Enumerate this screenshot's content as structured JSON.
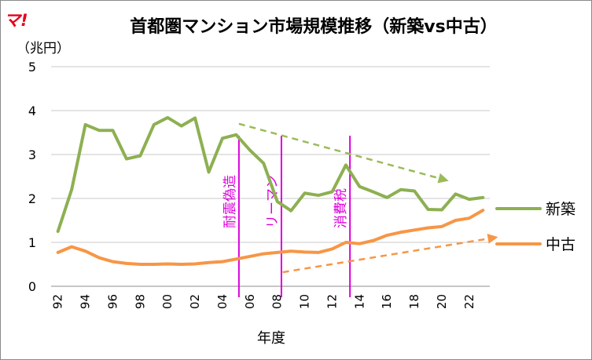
{
  "logo": {
    "text": "マ!",
    "color": "#e8001c"
  },
  "chart_data": {
    "type": "line",
    "title": "首都圏マンション市場規模推移（新築vs中古）",
    "ylabel": "（兆円）",
    "xlabel": "年度",
    "ylim": [
      0,
      5
    ],
    "yticks": [
      0,
      1,
      2,
      3,
      4,
      5
    ],
    "grid": true,
    "legend_position": "right",
    "x": [
      1992,
      1993,
      1994,
      1995,
      1996,
      1997,
      1998,
      1999,
      2000,
      2001,
      2002,
      2003,
      2004,
      2005,
      2006,
      2007,
      2008,
      2009,
      2010,
      2011,
      2012,
      2013,
      2014,
      2015,
      2016,
      2017,
      2018,
      2019,
      2020,
      2021,
      2022,
      2023
    ],
    "xtick_labels": [
      "92",
      "94",
      "96",
      "98",
      "00",
      "02",
      "04",
      "06",
      "08",
      "10",
      "12",
      "14",
      "16",
      "18",
      "20",
      "22"
    ],
    "xtick_years": [
      1992,
      1994,
      1996,
      1998,
      2000,
      2002,
      2004,
      2006,
      2008,
      2010,
      2012,
      2014,
      2016,
      2018,
      2020,
      2022
    ],
    "series": [
      {
        "name": "新築",
        "color": "#8db051",
        "values": [
          1.25,
          2.2,
          3.68,
          3.55,
          3.55,
          2.9,
          2.97,
          3.68,
          3.84,
          3.65,
          3.83,
          2.6,
          3.37,
          3.45,
          3.1,
          2.8,
          1.93,
          1.72,
          2.12,
          2.07,
          2.15,
          2.76,
          2.27,
          2.15,
          2.02,
          2.2,
          2.17,
          1.75,
          1.74,
          2.1,
          1.98,
          2.02
        ]
      },
      {
        "name": "中古",
        "color": "#f79646",
        "values": [
          0.77,
          0.9,
          0.8,
          0.65,
          0.56,
          0.52,
          0.5,
          0.5,
          0.51,
          0.5,
          0.51,
          0.54,
          0.56,
          0.62,
          0.68,
          0.74,
          0.77,
          0.8,
          0.78,
          0.77,
          0.85,
          1.0,
          0.97,
          1.04,
          1.16,
          1.23,
          1.28,
          1.33,
          1.36,
          1.5,
          1.55,
          1.73
        ]
      }
    ],
    "annotations": [
      {
        "text": "耐震偽造",
        "year": 2005.2,
        "color": "#dd00dd"
      },
      {
        "text": "リーマン",
        "year": 2008.3,
        "color": "#dd00dd"
      },
      {
        "text": "消費税",
        "year": 2013.3,
        "color": "#dd00dd"
      }
    ],
    "trend_arrows": [
      {
        "series": "新築",
        "from": [
          2005.2,
          3.7
        ],
        "to": [
          2020.5,
          2.4
        ],
        "color": "#9bbb59"
      },
      {
        "series": "中古",
        "from": [
          2008.4,
          0.32
        ],
        "to": [
          2024.1,
          1.12
        ],
        "color": "#f79646"
      }
    ]
  }
}
